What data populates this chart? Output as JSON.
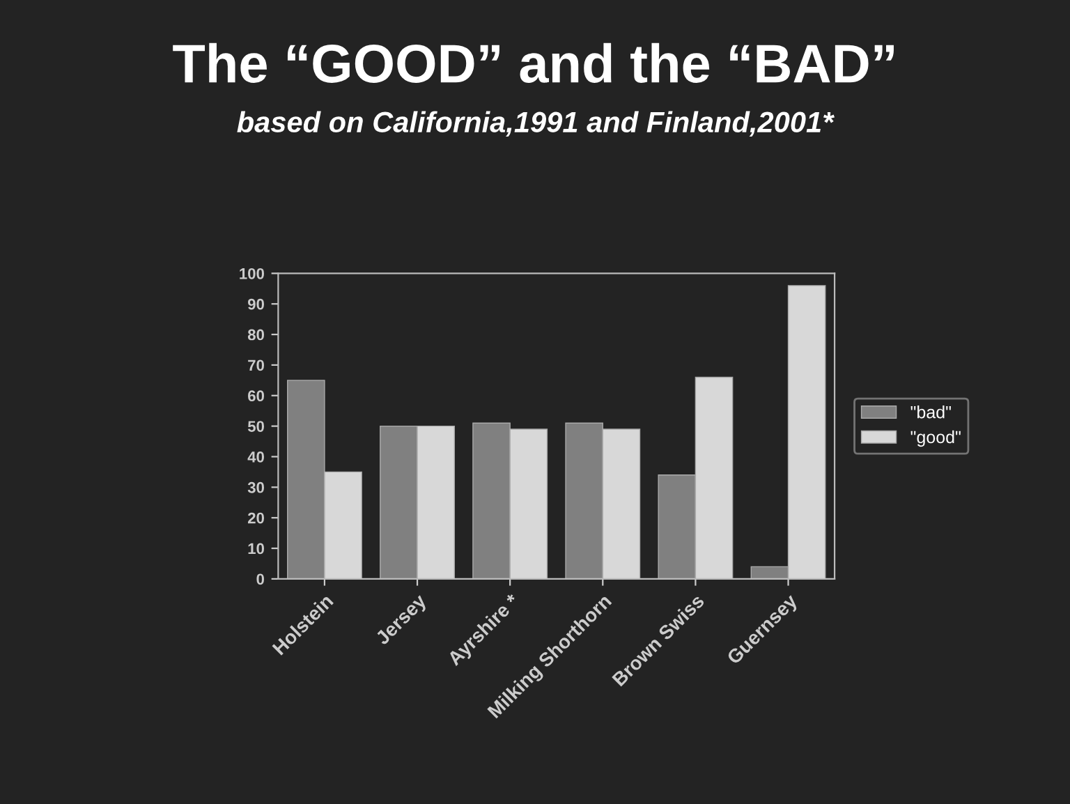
{
  "chart_data": {
    "type": "bar",
    "title": "The “GOOD” and the “BAD”",
    "subtitle": "based on California,1991 and Finland,2001*",
    "categories": [
      "Holstein",
      "Jersey",
      "Ayrshire *",
      "Milking Shorthorn",
      "Brown Swiss",
      "Guernsey"
    ],
    "series": [
      {
        "name": "\"bad\"",
        "color": "#808080",
        "values": [
          65,
          50,
          51,
          51,
          34,
          4
        ]
      },
      {
        "name": "\"good\"",
        "color": "#d8d8d8",
        "values": [
          35,
          50,
          49,
          49,
          66,
          96
        ]
      }
    ],
    "ylim": [
      0,
      100
    ],
    "yticks": [
      0,
      10,
      20,
      30,
      40,
      50,
      60,
      70,
      80,
      90,
      100
    ],
    "grid": false,
    "legend": "right"
  }
}
